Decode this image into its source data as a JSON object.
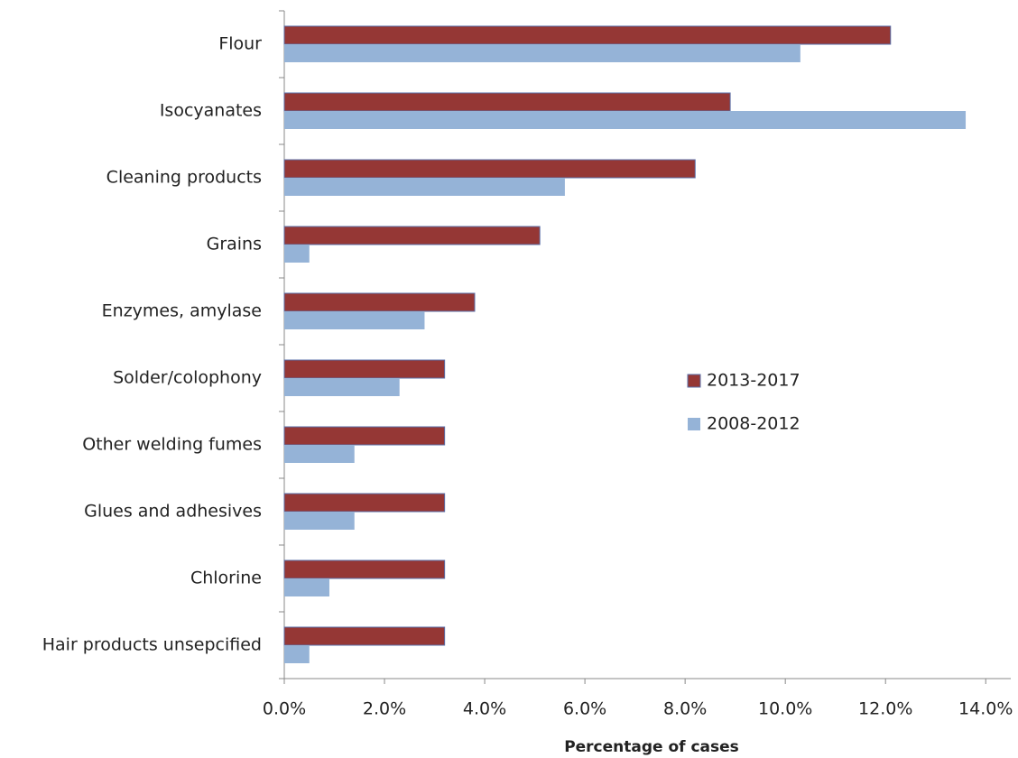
{
  "chart_data": {
    "type": "barh",
    "x_label": "Percentage of cases",
    "categories": [
      "Flour",
      "Isocyanates",
      "Cleaning products",
      "Grains",
      "Enzymes, amylase",
      "Solder/colophony",
      "Other welding fumes",
      "Glues and adhesives",
      "Chlorine",
      "Hair products unsepcified"
    ],
    "series": [
      {
        "name": "2013-2017",
        "color": "#953735",
        "values": [
          12.1,
          8.9,
          8.2,
          5.1,
          3.8,
          3.2,
          3.2,
          3.2,
          3.2,
          3.2
        ]
      },
      {
        "name": "2008-2012",
        "color": "#95b3d7",
        "values": [
          10.3,
          13.6,
          5.6,
          0.5,
          2.8,
          2.3,
          1.4,
          1.4,
          0.9,
          0.5
        ]
      }
    ],
    "xlim": [
      0,
      14.5
    ],
    "xticks": [
      {
        "value": 0,
        "label": "0.0%"
      },
      {
        "value": 2,
        "label": "2.0%"
      },
      {
        "value": 4,
        "label": "4.0%"
      },
      {
        "value": 6,
        "label": "6.0%"
      },
      {
        "value": 8,
        "label": "8.0%"
      },
      {
        "value": 10,
        "label": "10.0%"
      },
      {
        "value": 12,
        "label": "12.0%"
      },
      {
        "value": 14,
        "label": "14.0%"
      }
    ],
    "grid": false,
    "legend": "right"
  }
}
